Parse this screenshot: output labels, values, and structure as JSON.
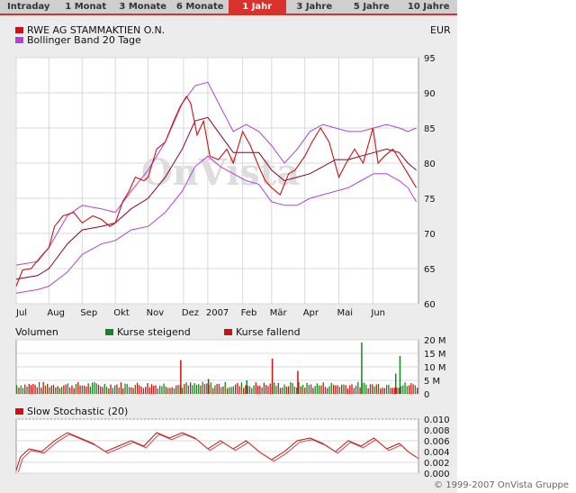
{
  "tabs": [
    {
      "label": "Intraday",
      "active": false
    },
    {
      "label": "1 Monat",
      "active": false
    },
    {
      "label": "3 Monate",
      "active": false
    },
    {
      "label": "6 Monate",
      "active": false
    },
    {
      "label": "1 Jahr",
      "active": true
    },
    {
      "label": "3 Jahre",
      "active": false
    },
    {
      "label": "5 Jahre",
      "active": false
    },
    {
      "label": "10 Jahre",
      "active": false
    }
  ],
  "legend": {
    "stock": "RWE AG STAMMAKTIEN O.N.",
    "bollinger": "Bollinger Band 20 Tage",
    "currency": "EUR"
  },
  "watermark": "OnVista",
  "volume_legend": {
    "title": "Volumen",
    "rising": "Kurse steigend",
    "falling": "Kurse fallend"
  },
  "stochastic_label": "Slow Stochastic (20)",
  "copyright": "© 1999-2007 OnVista Gruppe",
  "colors": {
    "price": "#d01010",
    "bollinger": "#b040e0",
    "volume_up": "#108820",
    "volume_down": "#d01010",
    "active_tab": "#d9322e"
  },
  "chart_data": [
    {
      "type": "line",
      "name": "price",
      "x_labels": [
        "Jul",
        "Aug",
        "Sep",
        "Okt",
        "Nov",
        "Dez",
        "2007",
        "Feb",
        "Mär",
        "Apr",
        "Mai",
        "Jun"
      ],
      "x_label_pos": [
        0.0,
        0.77,
        1.55,
        2.33,
        3.1,
        3.93,
        4.5,
        5.32,
        6.0,
        6.78,
        7.58,
        8.38
      ],
      "x_max": 9.45,
      "y_ticks": [
        95,
        90,
        85,
        80,
        75,
        70,
        65,
        60
      ],
      "ylim": [
        60,
        95
      ],
      "price_points": [
        [
          0,
          62.5
        ],
        [
          0.15,
          64.8
        ],
        [
          0.35,
          65.0
        ],
        [
          0.55,
          66.5
        ],
        [
          0.77,
          68.0
        ],
        [
          0.9,
          71.0
        ],
        [
          1.1,
          72.5
        ],
        [
          1.35,
          73.0
        ],
        [
          1.55,
          71.5
        ],
        [
          1.8,
          72.5
        ],
        [
          2.0,
          72.0
        ],
        [
          2.2,
          71.0
        ],
        [
          2.33,
          71.5
        ],
        [
          2.5,
          74.5
        ],
        [
          2.65,
          76.0
        ],
        [
          2.8,
          78.0
        ],
        [
          3.0,
          77.5
        ],
        [
          3.1,
          78.0
        ],
        [
          3.3,
          82.0
        ],
        [
          3.5,
          83.0
        ],
        [
          3.7,
          86.0
        ],
        [
          3.85,
          88.0
        ],
        [
          4.0,
          89.5
        ],
        [
          4.1,
          88.5
        ],
        [
          4.25,
          84.0
        ],
        [
          4.4,
          86.0
        ],
        [
          4.55,
          81.0
        ],
        [
          4.75,
          80.5
        ],
        [
          4.95,
          82.0
        ],
        [
          5.1,
          80.0
        ],
        [
          5.32,
          84.5
        ],
        [
          5.5,
          82.5
        ],
        [
          5.7,
          79.5
        ],
        [
          5.85,
          77.5
        ],
        [
          6.0,
          76.5
        ],
        [
          6.2,
          75.5
        ],
        [
          6.4,
          78.5
        ],
        [
          6.55,
          79.0
        ],
        [
          6.78,
          81.0
        ],
        [
          6.95,
          83.0
        ],
        [
          7.15,
          85.0
        ],
        [
          7.35,
          83.0
        ],
        [
          7.58,
          78.0
        ],
        [
          7.75,
          80.0
        ],
        [
          7.95,
          82.0
        ],
        [
          8.15,
          80.0
        ],
        [
          8.38,
          85.0
        ],
        [
          8.5,
          80.0
        ],
        [
          8.65,
          81.0
        ],
        [
          8.85,
          82.0
        ],
        [
          9.05,
          80.0
        ],
        [
          9.2,
          78.5
        ],
        [
          9.4,
          76.5
        ]
      ],
      "middle_band": [
        [
          0,
          63.5
        ],
        [
          0.5,
          64.0
        ],
        [
          0.77,
          65.0
        ],
        [
          1.2,
          68.5
        ],
        [
          1.55,
          70.5
        ],
        [
          2.0,
          71.0
        ],
        [
          2.33,
          71.5
        ],
        [
          2.7,
          73.5
        ],
        [
          3.1,
          75.0
        ],
        [
          3.5,
          78.0
        ],
        [
          3.9,
          82.0
        ],
        [
          4.2,
          86.0
        ],
        [
          4.5,
          86.5
        ],
        [
          4.8,
          84.0
        ],
        [
          5.1,
          81.5
        ],
        [
          5.4,
          81.5
        ],
        [
          5.7,
          81.5
        ],
        [
          6.0,
          79.0
        ],
        [
          6.3,
          77.5
        ],
        [
          6.6,
          78.0
        ],
        [
          6.9,
          78.5
        ],
        [
          7.2,
          79.5
        ],
        [
          7.5,
          80.5
        ],
        [
          7.8,
          80.5
        ],
        [
          8.1,
          81.0
        ],
        [
          8.4,
          81.5
        ],
        [
          8.7,
          82.0
        ],
        [
          9.0,
          81.5
        ],
        [
          9.2,
          80.0
        ],
        [
          9.4,
          79.0
        ]
      ],
      "upper_band": [
        [
          0,
          65.5
        ],
        [
          0.5,
          66.0
        ],
        [
          0.77,
          68.0
        ],
        [
          1.2,
          72.5
        ],
        [
          1.55,
          74.0
        ],
        [
          2.0,
          73.5
        ],
        [
          2.33,
          73.0
        ],
        [
          2.7,
          76.0
        ],
        [
          3.1,
          79.0
        ],
        [
          3.5,
          83.0
        ],
        [
          3.9,
          88.5
        ],
        [
          4.2,
          91.0
        ],
        [
          4.5,
          91.5
        ],
        [
          4.8,
          88.0
        ],
        [
          5.1,
          84.5
        ],
        [
          5.4,
          85.5
        ],
        [
          5.7,
          84.5
        ],
        [
          6.0,
          82.5
        ],
        [
          6.3,
          80.0
        ],
        [
          6.6,
          82.0
        ],
        [
          6.9,
          84.5
        ],
        [
          7.2,
          85.5
        ],
        [
          7.5,
          85.0
        ],
        [
          7.8,
          84.5
        ],
        [
          8.1,
          84.5
        ],
        [
          8.4,
          85.0
        ],
        [
          8.7,
          85.5
        ],
        [
          9.0,
          85.0
        ],
        [
          9.2,
          84.5
        ],
        [
          9.4,
          85.0
        ]
      ],
      "lower_band": [
        [
          0,
          61.5
        ],
        [
          0.5,
          62.0
        ],
        [
          0.77,
          62.5
        ],
        [
          1.2,
          64.5
        ],
        [
          1.55,
          67.0
        ],
        [
          2.0,
          68.5
        ],
        [
          2.33,
          69.0
        ],
        [
          2.7,
          70.5
        ],
        [
          3.1,
          71.0
        ],
        [
          3.5,
          73.0
        ],
        [
          3.9,
          76.0
        ],
        [
          4.2,
          79.5
        ],
        [
          4.5,
          81.0
        ],
        [
          4.8,
          79.5
        ],
        [
          5.1,
          78.5
        ],
        [
          5.4,
          77.5
        ],
        [
          5.7,
          77.0
        ],
        [
          6.0,
          74.5
        ],
        [
          6.3,
          74.0
        ],
        [
          6.6,
          74.0
        ],
        [
          6.9,
          75.0
        ],
        [
          7.2,
          75.5
        ],
        [
          7.5,
          76.0
        ],
        [
          7.8,
          76.5
        ],
        [
          8.1,
          77.5
        ],
        [
          8.4,
          78.5
        ],
        [
          8.7,
          78.5
        ],
        [
          9.0,
          77.5
        ],
        [
          9.2,
          76.5
        ],
        [
          9.4,
          74.5
        ]
      ]
    },
    {
      "type": "bar",
      "name": "volume",
      "y_ticks": [
        "20 M",
        "15 M",
        "10 M",
        "5 M",
        "0"
      ],
      "y_tick_values": [
        20,
        15,
        10,
        5,
        0
      ],
      "ylim": [
        0,
        20
      ],
      "spikes": [
        [
          3.85,
          12.5,
          "down"
        ],
        [
          6.0,
          13.0,
          "down"
        ],
        [
          8.1,
          19.0,
          "up"
        ],
        [
          9.0,
          14.0,
          "up"
        ],
        [
          8.9,
          7.5,
          "up"
        ],
        [
          6.6,
          8.5,
          "down"
        ],
        [
          4.5,
          5.5,
          "down"
        ],
        [
          5.4,
          5.0,
          "up"
        ]
      ],
      "baseline_range": [
        2.0,
        4.5
      ]
    },
    {
      "type": "line",
      "name": "stochastic",
      "y_ticks": [
        "0.010",
        "0.008",
        "0.006",
        "0.004",
        "0.002",
        "0.000"
      ],
      "y_tick_values": [
        0.01,
        0.008,
        0.006,
        0.004,
        0.002,
        0.0
      ],
      "ylim": [
        0,
        0.01
      ],
      "points": [
        [
          0,
          0.0005
        ],
        [
          0.1,
          0.003
        ],
        [
          0.3,
          0.0045
        ],
        [
          0.6,
          0.004
        ],
        [
          0.9,
          0.006
        ],
        [
          1.2,
          0.0075
        ],
        [
          1.5,
          0.0065
        ],
        [
          1.8,
          0.0055
        ],
        [
          2.1,
          0.004
        ],
        [
          2.4,
          0.005
        ],
        [
          2.7,
          0.006
        ],
        [
          3.0,
          0.005
        ],
        [
          3.3,
          0.0075
        ],
        [
          3.6,
          0.0065
        ],
        [
          3.9,
          0.0075
        ],
        [
          4.2,
          0.0065
        ],
        [
          4.5,
          0.0045
        ],
        [
          4.8,
          0.006
        ],
        [
          5.1,
          0.0045
        ],
        [
          5.4,
          0.006
        ],
        [
          5.7,
          0.004
        ],
        [
          6.0,
          0.0025
        ],
        [
          6.3,
          0.004
        ],
        [
          6.6,
          0.006
        ],
        [
          6.9,
          0.0065
        ],
        [
          7.2,
          0.0055
        ],
        [
          7.5,
          0.004
        ],
        [
          7.8,
          0.006
        ],
        [
          8.1,
          0.005
        ],
        [
          8.4,
          0.0065
        ],
        [
          8.7,
          0.0045
        ],
        [
          9.0,
          0.0055
        ],
        [
          9.2,
          0.004
        ],
        [
          9.4,
          0.003
        ]
      ]
    }
  ]
}
